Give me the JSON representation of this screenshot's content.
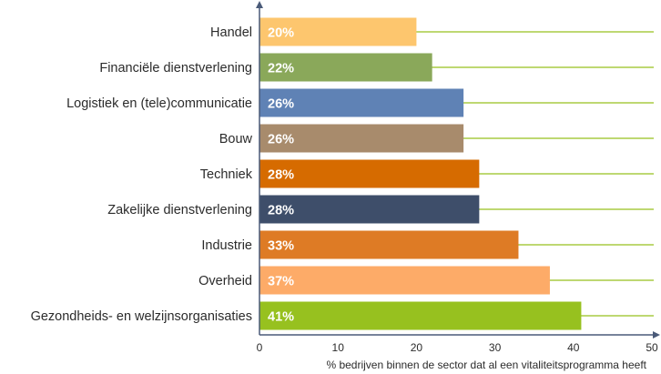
{
  "chart_data": {
    "type": "bar",
    "orientation": "horizontal",
    "categories": [
      "Handel",
      "Financiële dienstverlening",
      "Logistiek en (tele)communicatie",
      "Bouw",
      "Techniek",
      "Zakelijke dienstverlening",
      "Industrie",
      "Overheid",
      "Gezondheids- en welzijnsorganisaties"
    ],
    "values": [
      20,
      22,
      26,
      26,
      28,
      28,
      33,
      37,
      41
    ],
    "value_labels": [
      "20%",
      "22%",
      "26%",
      "26%",
      "28%",
      "28%",
      "33%",
      "37%",
      "41%"
    ],
    "bar_colors": [
      "#fdc66e",
      "#8aa85a",
      "#5f82b5",
      "#a88b6c",
      "#d66b00",
      "#3e4e6a",
      "#de7b25",
      "#fdab68",
      "#97c11f"
    ],
    "xlim": [
      0,
      50
    ],
    "xticks": [
      "0",
      "10",
      "20",
      "30",
      "40",
      "50"
    ],
    "xlabel": "%  bedrijven binnen de sector dat al een vitaliteitsprogramma heeft",
    "title": "",
    "gridline_color": "#97c11f",
    "axis_color": "#4a5a78"
  }
}
